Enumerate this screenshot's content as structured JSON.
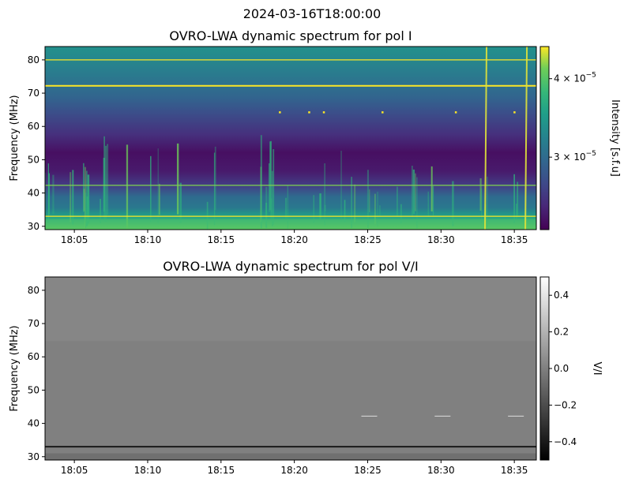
{
  "suptitle": "2024-03-16T18:00:00",
  "chart_data": [
    {
      "type": "heatmap",
      "title": "OVRO-LWA dynamic spectrum for pol I",
      "xlabel": "",
      "ylabel": "Frequency (MHz)",
      "colormap": "viridis",
      "x_range": [
        "18:03",
        "18:36:30"
      ],
      "xticks": [
        "18:05",
        "18:10",
        "18:15",
        "18:20",
        "18:25",
        "18:30",
        "18:35"
      ],
      "ylim": [
        29,
        84
      ],
      "yticks": [
        30,
        40,
        50,
        60,
        70,
        80
      ],
      "colorbar": {
        "label": "Intensity [s.f.u]",
        "scale": "log",
        "range": [
          2.3e-05,
          4.5e-05
        ],
        "ticks": [
          {
            "value": 4e-05,
            "mantissa": "4 × 10",
            "exponent": "−5"
          },
          {
            "value": 3e-05,
            "mantissa": "3 × 10",
            "exponent": "−5"
          }
        ]
      },
      "features": {
        "bright_horizontal_lines_mhz": [
          80,
          72.2,
          42.3,
          33
        ],
        "bright_vertical_bursts_time": [
          "18:33",
          "18:35:45"
        ],
        "dot_row_mhz": 64.3,
        "dot_times": [
          "18:19",
          "18:21",
          "18:22",
          "18:26",
          "18:31",
          "18:35"
        ]
      }
    },
    {
      "type": "heatmap",
      "title": "OVRO-LWA dynamic spectrum for pol V/I",
      "xlabel": "",
      "ylabel": "Frequency (MHz)",
      "colormap": "gray",
      "x_range": [
        "18:03",
        "18:36:30"
      ],
      "xticks": [
        "18:05",
        "18:10",
        "18:15",
        "18:20",
        "18:25",
        "18:30",
        "18:35"
      ],
      "ylim": [
        29,
        84
      ],
      "yticks": [
        30,
        40,
        50,
        60,
        70,
        80
      ],
      "colorbar": {
        "label": "V/I",
        "scale": "linear",
        "range": [
          -0.5,
          0.5
        ],
        "ticks": [
          {
            "value": 0.4,
            "label": "0.4"
          },
          {
            "value": 0.2,
            "label": "0.2"
          },
          {
            "value": 0.0,
            "label": "0.0"
          },
          {
            "value": -0.2,
            "label": "−0.2"
          },
          {
            "value": -0.4,
            "label": "−0.4"
          }
        ]
      },
      "features": {
        "dark_horizontal_line_mhz": 33
      }
    }
  ]
}
